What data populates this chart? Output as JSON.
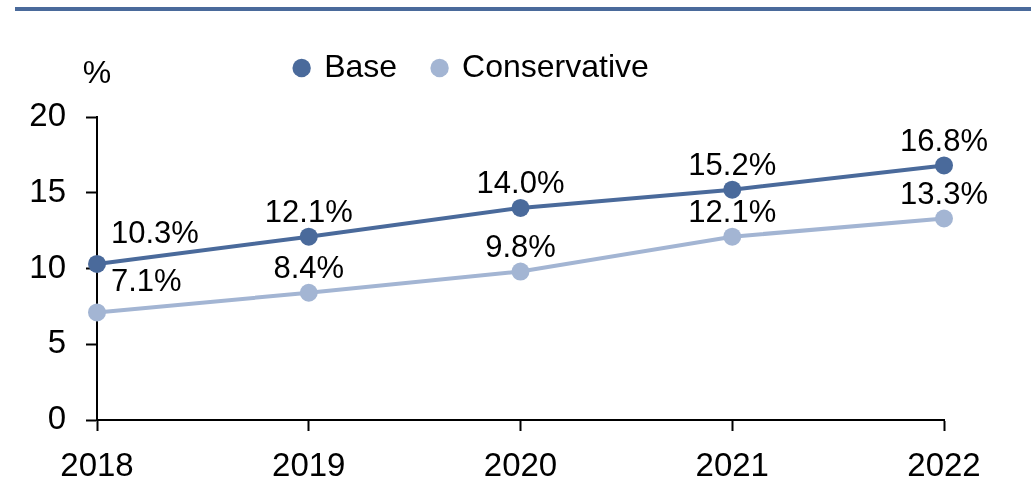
{
  "chart_data": {
    "type": "line",
    "ylabel": "%",
    "categories": [
      "2018",
      "2019",
      "2020",
      "2021",
      "2022"
    ],
    "series": [
      {
        "name": "Base",
        "color": "#4a6a9b",
        "values": [
          10.3,
          12.1,
          14.0,
          15.2,
          16.8
        ],
        "value_labels": [
          "10.3%",
          "12.1%",
          "14.0%",
          "15.2%",
          "16.8%"
        ]
      },
      {
        "name": "Conservative",
        "color": "#a3b5d3",
        "values": [
          7.1,
          8.4,
          9.8,
          12.1,
          13.3
        ],
        "value_labels": [
          "7.1%",
          "8.4%",
          "9.8%",
          "12.1%",
          "13.3%"
        ]
      }
    ],
    "ylim": [
      0,
      20
    ],
    "yticks": [
      0,
      5,
      10,
      15,
      20
    ],
    "grid": false,
    "legend": "top",
    "marker": "circle",
    "line_style": "solid"
  }
}
